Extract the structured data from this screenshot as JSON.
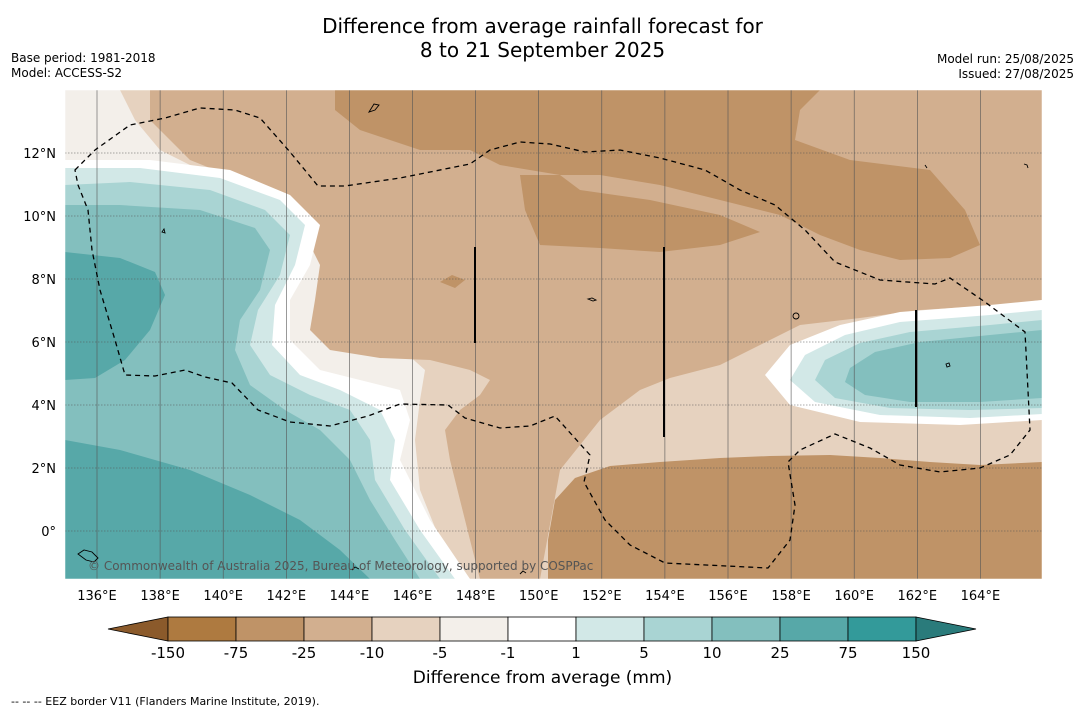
{
  "title_line1": "Difference from average rainfall forecast for",
  "title_line2": "8 to 21 September 2025",
  "base_period": "Base period: 1981-2018",
  "model": "Model: ACCESS-S2",
  "model_run": "Model run: 25/08/2025",
  "issued": "Issued: 27/08/2025",
  "copyright": "© Commonwealth of Australia 2025, Bureau of Meteorology, supported by COSPPac",
  "footer_note": "-- -- -- EEZ border V11 (Flanders Marine Institute, 2019).",
  "colorbar": {
    "title": "Difference from average (mm)",
    "ticks": [
      "-150",
      "-75",
      "-25",
      "-10",
      "-5",
      "-1",
      "1",
      "5",
      "10",
      "25",
      "75",
      "150"
    ],
    "colors": [
      "#ae7a40",
      "#bf9367",
      "#d2af8f",
      "#e6d2bf",
      "#f3efea",
      "#ffffff",
      "#d2e8e7",
      "#a9d4d3",
      "#83bfbe",
      "#57a8a8",
      "#339a9a"
    ],
    "extend_low": "#8b5a2b",
    "extend_high": "#2a7b7b"
  },
  "map": {
    "lon_labels": [
      "136°E",
      "138°E",
      "140°E",
      "142°E",
      "144°E",
      "146°E",
      "148°E",
      "150°E",
      "152°E",
      "154°E",
      "156°E",
      "158°E",
      "160°E",
      "162°E",
      "164°E"
    ],
    "lat_labels": [
      "12°N",
      "10°N",
      "8°N",
      "6°N",
      "4°N",
      "2°N",
      "0°"
    ]
  }
}
